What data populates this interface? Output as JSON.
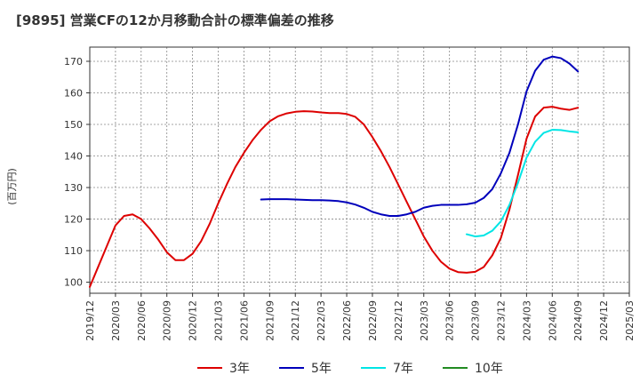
{
  "chart_data": {
    "type": "line",
    "title": "[9895]  営業CFの12か月移動合計の標準偏差の推移",
    "ylabel": "(百万円)",
    "xlabel": "",
    "ylim": [
      96.5,
      174.5
    ],
    "yticks": [
      100,
      110,
      120,
      130,
      140,
      150,
      160,
      170
    ],
    "xticks": [
      "2019/12",
      "2020/03",
      "2020/06",
      "2020/09",
      "2020/12",
      "2021/03",
      "2021/06",
      "2021/09",
      "2021/12",
      "2022/03",
      "2022/06",
      "2022/09",
      "2022/12",
      "2023/03",
      "2023/06",
      "2023/09",
      "2023/12",
      "2024/03",
      "2024/06",
      "2024/09",
      "2024/12",
      "2025/03"
    ],
    "grid": true,
    "legend_position": "bottom",
    "series": [
      {
        "name": "3年",
        "color": "#dd0000",
        "points": [
          [
            "2019/12",
            98.5
          ],
          [
            "2020/01",
            105
          ],
          [
            "2020/02",
            111.5
          ],
          [
            "2020/03",
            118
          ],
          [
            "2020/04",
            121
          ],
          [
            "2020/05",
            121.5
          ],
          [
            "2020/06",
            120
          ],
          [
            "2020/07",
            117
          ],
          [
            "2020/08",
            113.5
          ],
          [
            "2020/09",
            109.5
          ],
          [
            "2020/10",
            107
          ],
          [
            "2020/11",
            107
          ],
          [
            "2020/12",
            109
          ],
          [
            "2021/01",
            113
          ],
          [
            "2021/02",
            118.5
          ],
          [
            "2021/03",
            125
          ],
          [
            "2021/04",
            131
          ],
          [
            "2021/05",
            136.5
          ],
          [
            "2021/06",
            141
          ],
          [
            "2021/07",
            145
          ],
          [
            "2021/08",
            148.3
          ],
          [
            "2021/09",
            151
          ],
          [
            "2021/10",
            152.6
          ],
          [
            "2021/11",
            153.5
          ],
          [
            "2021/12",
            154
          ],
          [
            "2022/01",
            154.2
          ],
          [
            "2022/02",
            154.1
          ],
          [
            "2022/03",
            153.8
          ],
          [
            "2022/04",
            153.6
          ],
          [
            "2022/05",
            153.6
          ],
          [
            "2022/06",
            153.3
          ],
          [
            "2022/07",
            152.4
          ],
          [
            "2022/08",
            150
          ],
          [
            "2022/09",
            146
          ],
          [
            "2022/10",
            141.5
          ],
          [
            "2022/11",
            136.5
          ],
          [
            "2022/12",
            131
          ],
          [
            "2023/01",
            125.5
          ],
          [
            "2023/02",
            120
          ],
          [
            "2023/03",
            114.5
          ],
          [
            "2023/04",
            110
          ],
          [
            "2023/05",
            106.5
          ],
          [
            "2023/06",
            104.3
          ],
          [
            "2023/07",
            103.2
          ],
          [
            "2023/08",
            103
          ],
          [
            "2023/09",
            103.3
          ],
          [
            "2023/10",
            104.8
          ],
          [
            "2023/11",
            108.5
          ],
          [
            "2023/12",
            114
          ],
          [
            "2024/01",
            123
          ],
          [
            "2024/02",
            134
          ],
          [
            "2024/03",
            145.5
          ],
          [
            "2024/04",
            152.5
          ],
          [
            "2024/05",
            155.3
          ],
          [
            "2024/06",
            155.6
          ],
          [
            "2024/07",
            155
          ],
          [
            "2024/08",
            154.6
          ],
          [
            "2024/09",
            155.3
          ]
        ]
      },
      {
        "name": "5年",
        "color": "#0000bb",
        "points": [
          [
            "2021/08",
            126.2
          ],
          [
            "2021/09",
            126.3
          ],
          [
            "2021/10",
            126.3
          ],
          [
            "2021/11",
            126.3
          ],
          [
            "2021/12",
            126.2
          ],
          [
            "2022/01",
            126.1
          ],
          [
            "2022/02",
            126.0
          ],
          [
            "2022/03",
            126.0
          ],
          [
            "2022/04",
            125.9
          ],
          [
            "2022/05",
            125.7
          ],
          [
            "2022/06",
            125.3
          ],
          [
            "2022/07",
            124.6
          ],
          [
            "2022/08",
            123.6
          ],
          [
            "2022/09",
            122.3
          ],
          [
            "2022/10",
            121.5
          ],
          [
            "2022/11",
            121.0
          ],
          [
            "2022/12",
            121.0
          ],
          [
            "2023/01",
            121.5
          ],
          [
            "2023/02",
            122.3
          ],
          [
            "2023/03",
            123.6
          ],
          [
            "2023/04",
            124.2
          ],
          [
            "2023/05",
            124.5
          ],
          [
            "2023/06",
            124.5
          ],
          [
            "2023/07",
            124.5
          ],
          [
            "2023/08",
            124.7
          ],
          [
            "2023/09",
            125.2
          ],
          [
            "2023/10",
            126.7
          ],
          [
            "2023/11",
            129.5
          ],
          [
            "2023/12",
            134.5
          ],
          [
            "2024/01",
            141
          ],
          [
            "2024/02",
            150
          ],
          [
            "2024/03",
            160.5
          ],
          [
            "2024/04",
            167
          ],
          [
            "2024/05",
            170.5
          ],
          [
            "2024/06",
            171.5
          ],
          [
            "2024/07",
            171
          ],
          [
            "2024/08",
            169.3
          ],
          [
            "2024/09",
            166.8
          ]
        ]
      },
      {
        "name": "7年",
        "color": "#00e5e5",
        "points": [
          [
            "2023/08",
            115.2
          ],
          [
            "2023/09",
            114.5
          ],
          [
            "2023/10",
            114.8
          ],
          [
            "2023/11",
            116.3
          ],
          [
            "2023/12",
            119.3
          ],
          [
            "2024/01",
            124.5
          ],
          [
            "2024/02",
            131.5
          ],
          [
            "2024/03",
            139.5
          ],
          [
            "2024/04",
            144.5
          ],
          [
            "2024/05",
            147.3
          ],
          [
            "2024/06",
            148.3
          ],
          [
            "2024/07",
            148.2
          ],
          [
            "2024/08",
            147.8
          ],
          [
            "2024/09",
            147.5
          ]
        ]
      },
      {
        "name": "10年",
        "color": "#228b22",
        "points": []
      }
    ]
  }
}
